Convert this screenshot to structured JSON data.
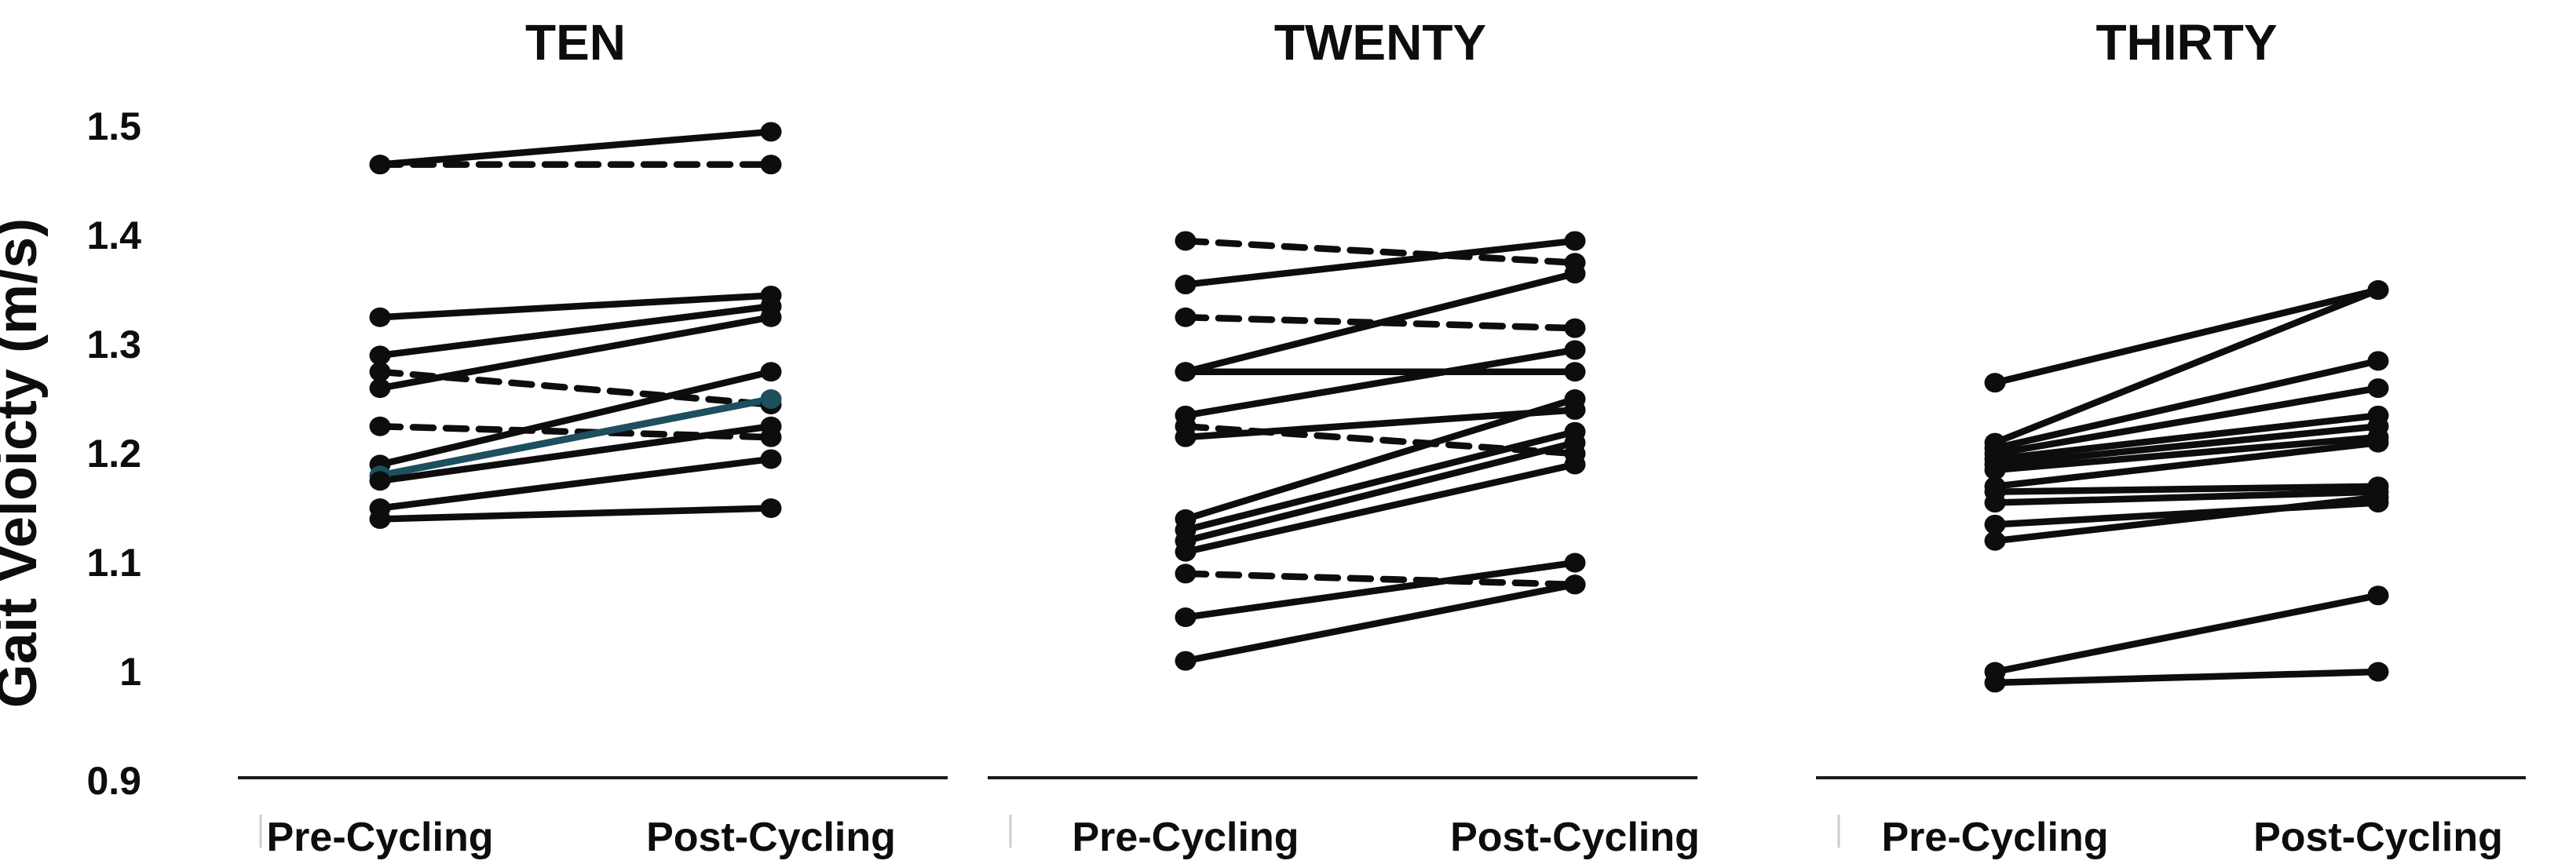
{
  "chart_data": {
    "type": "line",
    "subtype": "paired-slopegraph",
    "title": "",
    "ylabel": "Gait Veloicty (m/s)",
    "xlabel": "",
    "categories": [
      "Pre-Cycling",
      "Post-Cycling"
    ],
    "yticks": [
      "1.5",
      "1.4",
      "1.3",
      "1.2",
      "1.1",
      "1",
      "0.9"
    ],
    "ytick_values": [
      1.5,
      1.4,
      1.3,
      1.2,
      1.1,
      1.0,
      0.9
    ],
    "ylim": [
      0.9,
      1.5
    ],
    "grid": "off",
    "legend": "none",
    "line_styles_note": "each pair is one participant: pre -> post; style solid, dashed, or teal (highlighted)",
    "panels": [
      {
        "title": "TEN",
        "pairs": [
          {
            "pre": 1.465,
            "post": 1.495,
            "style": "solid"
          },
          {
            "pre": 1.465,
            "post": 1.465,
            "style": "dashed"
          },
          {
            "pre": 1.325,
            "post": 1.345,
            "style": "solid"
          },
          {
            "pre": 1.29,
            "post": 1.335,
            "style": "solid"
          },
          {
            "pre": 1.26,
            "post": 1.325,
            "style": "solid"
          },
          {
            "pre": 1.275,
            "post": 1.245,
            "style": "dashed"
          },
          {
            "pre": 1.225,
            "post": 1.215,
            "style": "dashed"
          },
          {
            "pre": 1.19,
            "post": 1.275,
            "style": "solid"
          },
          {
            "pre": 1.18,
            "post": 1.25,
            "style": "teal"
          },
          {
            "pre": 1.175,
            "post": 1.225,
            "style": "solid"
          },
          {
            "pre": 1.15,
            "post": 1.195,
            "style": "solid"
          },
          {
            "pre": 1.14,
            "post": 1.15,
            "style": "solid"
          }
        ]
      },
      {
        "title": "TWENTY",
        "pairs": [
          {
            "pre": 1.395,
            "post": 1.375,
            "style": "dashed"
          },
          {
            "pre": 1.355,
            "post": 1.395,
            "style": "solid"
          },
          {
            "pre": 1.325,
            "post": 1.315,
            "style": "dashed"
          },
          {
            "pre": 1.275,
            "post": 1.275,
            "style": "solid"
          },
          {
            "pre": 1.275,
            "post": 1.365,
            "style": "solid"
          },
          {
            "pre": 1.235,
            "post": 1.295,
            "style": "solid"
          },
          {
            "pre": 1.225,
            "post": 1.2,
            "style": "dashed"
          },
          {
            "pre": 1.215,
            "post": 1.24,
            "style": "solid"
          },
          {
            "pre": 1.14,
            "post": 1.25,
            "style": "solid"
          },
          {
            "pre": 1.13,
            "post": 1.22,
            "style": "solid"
          },
          {
            "pre": 1.12,
            "post": 1.21,
            "style": "solid"
          },
          {
            "pre": 1.11,
            "post": 1.19,
            "style": "solid"
          },
          {
            "pre": 1.09,
            "post": 1.08,
            "style": "dashed"
          },
          {
            "pre": 1.05,
            "post": 1.1,
            "style": "solid"
          },
          {
            "pre": 1.01,
            "post": 1.08,
            "style": "solid"
          }
        ]
      },
      {
        "title": "THIRTY",
        "pairs": [
          {
            "pre": 1.265,
            "post": 1.35,
            "style": "solid"
          },
          {
            "pre": 1.21,
            "post": 1.35,
            "style": "solid"
          },
          {
            "pre": 1.205,
            "post": 1.285,
            "style": "solid"
          },
          {
            "pre": 1.2,
            "post": 1.26,
            "style": "solid"
          },
          {
            "pre": 1.195,
            "post": 1.235,
            "style": "solid"
          },
          {
            "pre": 1.19,
            "post": 1.225,
            "style": "solid"
          },
          {
            "pre": 1.185,
            "post": 1.215,
            "style": "solid"
          },
          {
            "pre": 1.17,
            "post": 1.21,
            "style": "solid"
          },
          {
            "pre": 1.165,
            "post": 1.17,
            "style": "solid"
          },
          {
            "pre": 1.155,
            "post": 1.165,
            "style": "solid"
          },
          {
            "pre": 1.135,
            "post": 1.155,
            "style": "solid"
          },
          {
            "pre": 1.12,
            "post": 1.16,
            "style": "solid"
          },
          {
            "pre": 1.0,
            "post": 1.07,
            "style": "solid"
          },
          {
            "pre": 0.99,
            "post": 1.0,
            "style": "solid"
          }
        ]
      }
    ],
    "colors": {
      "line_black": "#0d0d0d",
      "teal_accent": "#1d4f5f",
      "axis_line": "#1a1a1a",
      "minor_tick_gray": "#cccccc",
      "background": "#ffffff"
    }
  }
}
